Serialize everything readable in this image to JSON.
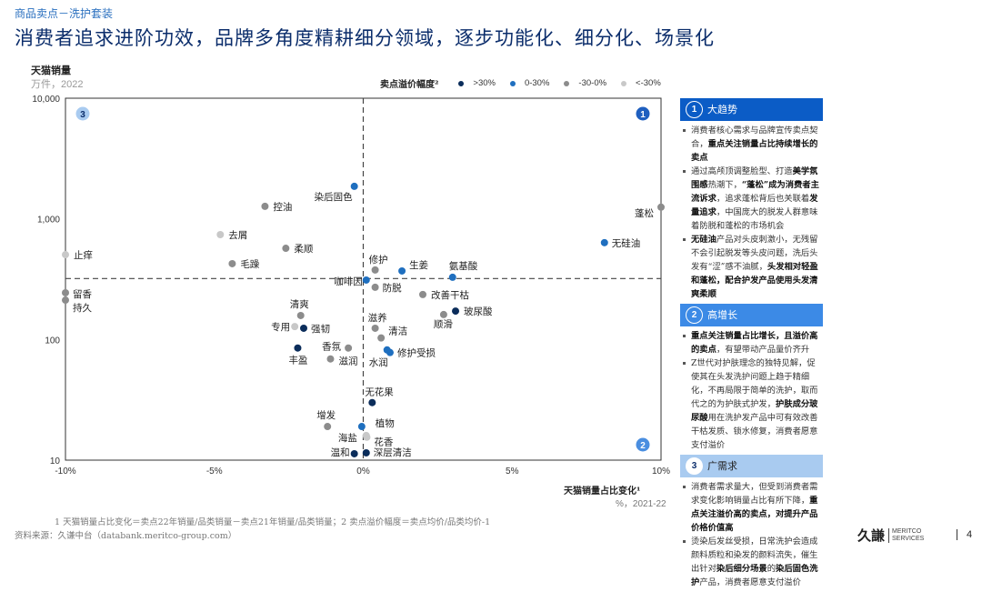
{
  "header": {
    "breadcrumb": "商品卖点－洗护套装",
    "title": "消费者追求进阶功效，品牌多角度精耕细分领域，逐步功能化、细分化、场景化"
  },
  "colors": {
    ">30%": "#0b2d5b",
    "0-30%": "#1f6fbf",
    "-30-0%": "#8c8c8c",
    "<-30%": "#c8c8c8"
  },
  "chart_data": {
    "type": "scatter",
    "ylabel": "天猫销量",
    "ylabel_sub": "万件，2022",
    "xlabel": "天猫销量占比变化¹",
    "xlabel_sub": "%，2021-22",
    "xlim": [
      -10,
      10
    ],
    "ylim": [
      10,
      10000
    ],
    "yscale": "log",
    "xticks": [
      "-10%",
      "-5%",
      "0%",
      "5%",
      "10%"
    ],
    "yticks": [
      "10",
      "100",
      "1,000",
      "10,000"
    ],
    "ytick_values": [
      10,
      100,
      1000,
      10000
    ],
    "xtick_values": [
      -10,
      -5,
      0,
      5,
      10
    ],
    "legend": {
      "title": "卖点溢价幅度²",
      "items": [
        ">30%",
        "0-30%",
        "-30-0%",
        "<-30%"
      ]
    },
    "dividers": {
      "x": 0,
      "y": 320
    },
    "quadrants": [
      "1",
      "2",
      "3"
    ],
    "points": [
      {
        "label": "染后固色",
        "x": -0.3,
        "y": 1860,
        "group": "0-30%"
      },
      {
        "label": "控油",
        "x": -3.3,
        "y": 1270,
        "group": "-30-0%"
      },
      {
        "label": "去屑",
        "x": -4.8,
        "y": 740,
        "group": "<-30%"
      },
      {
        "label": "柔顺",
        "x": -2.6,
        "y": 570,
        "group": "-30-0%"
      },
      {
        "label": "毛躁",
        "x": -4.4,
        "y": 425,
        "group": "-30-0%"
      },
      {
        "label": "止痒",
        "x": -10,
        "y": 505,
        "group": "<-30%"
      },
      {
        "label": "蓬松",
        "x": 10,
        "y": 1250,
        "group": "-30-0%"
      },
      {
        "label": "无硅油",
        "x": 8.1,
        "y": 635,
        "group": "0-30%"
      },
      {
        "label": "修护",
        "x": 0.4,
        "y": 377,
        "group": "-30-0%"
      },
      {
        "label": "生姜",
        "x": 1.3,
        "y": 370,
        "group": "0-30%"
      },
      {
        "label": "氨基酸",
        "x": 3.0,
        "y": 328,
        "group": "0-30%"
      },
      {
        "label": "咖啡因",
        "x": 0.1,
        "y": 311,
        "group": "0-30%"
      },
      {
        "label": "防脱",
        "x": 0.4,
        "y": 271,
        "group": "-30-0%"
      },
      {
        "label": "改善干枯",
        "x": 2.0,
        "y": 236,
        "group": "-30-0%"
      },
      {
        "label": "玻尿酸",
        "x": 3.1,
        "y": 172,
        "group": ">30%"
      },
      {
        "label": "顺滑",
        "x": 2.7,
        "y": 161,
        "group": "-30-0%"
      },
      {
        "label": "留香",
        "x": -10,
        "y": 244,
        "group": "-30-0%"
      },
      {
        "label": "持久",
        "x": -10,
        "y": 212,
        "group": "-30-0%"
      },
      {
        "label": "清爽",
        "x": -2.1,
        "y": 158,
        "group": "-30-0%"
      },
      {
        "label": "专用",
        "x": -2.3,
        "y": 128,
        "group": "<-30%"
      },
      {
        "label": "强韧",
        "x": -2.0,
        "y": 124,
        "group": ">30%"
      },
      {
        "label": "滋养",
        "x": 0.4,
        "y": 124,
        "group": "-30-0%"
      },
      {
        "label": "清洁",
        "x": 0.6,
        "y": 103,
        "group": "-30-0%"
      },
      {
        "label": "香氛",
        "x": -0.5,
        "y": 85,
        "group": "-30-0%"
      },
      {
        "label": "丰盈",
        "x": -2.2,
        "y": 85,
        "group": ">30%"
      },
      {
        "label": "修护受损",
        "x": 0.9,
        "y": 78,
        "group": "0-30%"
      },
      {
        "label": "水润",
        "x": 0.8,
        "y": 82,
        "group": "0-30%"
      },
      {
        "label": "滋润",
        "x": -1.1,
        "y": 69,
        "group": "-30-0%"
      },
      {
        "label": "无花果",
        "x": 0.3,
        "y": 30,
        "group": ">30%"
      },
      {
        "label": "增发",
        "x": -1.2,
        "y": 19,
        "group": "-30-0%"
      },
      {
        "label": "植物",
        "x": 0.1,
        "y": 16,
        "group": "<-30%"
      },
      {
        "label": "海盐",
        "x": -0.05,
        "y": 19,
        "group": "0-30%"
      },
      {
        "label": "花香",
        "x": 0.12,
        "y": 15.5,
        "group": "<-30%"
      },
      {
        "label": "温和",
        "x": -0.3,
        "y": 11.3,
        "group": ">30%"
      },
      {
        "label": "深层清洁",
        "x": 0.1,
        "y": 11.5,
        "group": ">30%"
      }
    ]
  },
  "panel": {
    "sections": [
      {
        "num": "1",
        "title": "大趋势",
        "bullets": [
          [
            {
              "t": "消费者核心需求与品牌宣传卖点契合，"
            },
            {
              "t": "重点关注销量占比持续增长的卖点",
              "b": true
            }
          ],
          [
            {
              "t": "通过高颅顶调整脸型、打造"
            },
            {
              "t": "美学氛围感",
              "b": true
            },
            {
              "t": "热潮下，"
            },
            {
              "t": "“蓬松”成为消费者主流诉求",
              "b": true
            },
            {
              "t": "，追求蓬松背后也关联着"
            },
            {
              "t": "发量追求",
              "b": true
            },
            {
              "t": "，中国庞大的脱发人群意味着防脱和蓬松的市场机会"
            }
          ],
          [
            {
              "t": "无硅油",
              "b": true
            },
            {
              "t": "产品对头皮刺激小，无残留不会引起脱发等头皮问题，洗后头发有“涩”感不油腻，"
            },
            {
              "t": "头发相对轻盈和蓬松，配合护发产品使用头发清爽柔顺",
              "b": true
            }
          ]
        ]
      },
      {
        "num": "2",
        "title": "高增长",
        "bullets": [
          [
            {
              "t": "重点关注销量占比增长，且溢价高的卖点",
              "b": true
            },
            {
              "t": "，有望带动产品量价齐升"
            }
          ],
          [
            {
              "t": "Z世代对护肤理念的独特见解，促使其在头发洗护问题上趋于精细化，不再局限于简单的洗护，取而代之的为护肤式护发，"
            },
            {
              "t": "护肤成分玻尿酸",
              "b": true
            },
            {
              "t": "用在洗护发产品中可有效改善干枯发质、锁水修复，消费者愿意支付溢价"
            }
          ]
        ]
      },
      {
        "num": "3",
        "title": "广需求",
        "bullets": [
          [
            {
              "t": "消费者需求量大，但受到消费者需求变化影响销量占比有所下降，"
            },
            {
              "t": "重点关注溢价高的卖点，对提升产品价格价值高",
              "b": true
            }
          ],
          [
            {
              "t": "烫染后发丝受损，日常洗护会造成颜料质粒和染发的颜料流失，催生出针对"
            },
            {
              "t": "染后细分场景",
              "b": true
            },
            {
              "t": "的"
            },
            {
              "t": "染后固色洗护",
              "b": true
            },
            {
              "t": "产品，消费者愿意支付溢价"
            }
          ]
        ]
      }
    ]
  },
  "footer": {
    "note": "1  天猫销量占比变化＝卖点22年销量/品类销量－卖点21年销量/品类销量；2  卖点溢价幅度＝卖点均价/品类均价-1",
    "source": "资料来源：久谦中台（databank.meritco-group.com）",
    "logo_cn": "久謙",
    "logo_en1": "MERITCO",
    "logo_en2": "SERVICES",
    "page": "4"
  }
}
